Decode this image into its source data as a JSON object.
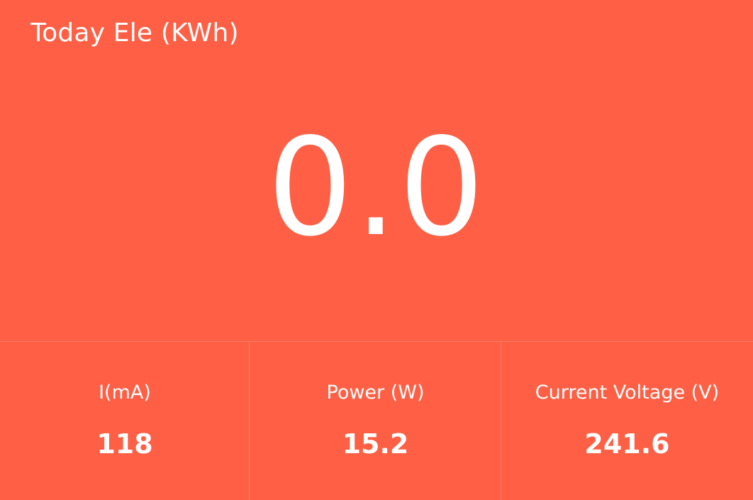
{
  "header": {
    "title": "Today Ele (KWh)"
  },
  "main": {
    "value": "0.0"
  },
  "stats": [
    {
      "label": "I(mA)",
      "value": "118"
    },
    {
      "label": "Power (W)",
      "value": "15.2"
    },
    {
      "label": "Current Voltage (V)",
      "value": "241.6"
    }
  ],
  "colors": {
    "background": "#FF5F44",
    "text": "#FFFFFF"
  }
}
